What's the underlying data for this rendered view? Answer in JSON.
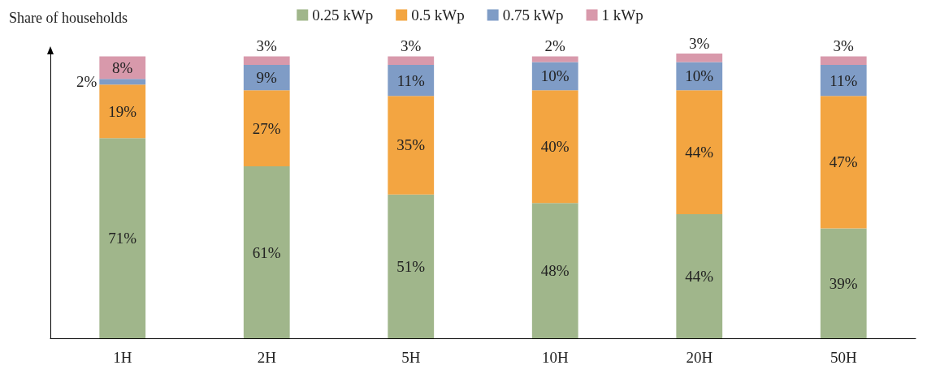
{
  "chart_data": {
    "type": "bar",
    "stacked": true,
    "ylabel": "Share of households",
    "categories": [
      "1H",
      "2H",
      "5H",
      "10H",
      "20H",
      "50H"
    ],
    "ylim": [
      0,
      101
    ],
    "grid": false,
    "legend": "top",
    "series": [
      {
        "name": "0.25 kWp",
        "color": "#a0b68b",
        "values": [
          71,
          61,
          51,
          48,
          44,
          39
        ],
        "value_labels": [
          "71%",
          "61%",
          "51%",
          "48%",
          "44%",
          "39%"
        ]
      },
      {
        "name": "0.5 kWp",
        "color": "#f3a541",
        "values": [
          19,
          27,
          35,
          40,
          44,
          47
        ],
        "value_labels": [
          "19%",
          "27%",
          "35%",
          "40%",
          "44%",
          "47%"
        ]
      },
      {
        "name": "0.75 kWp",
        "color": "#7f9cc6",
        "values": [
          2,
          9,
          11,
          10,
          10,
          11
        ],
        "value_labels": [
          "2%",
          "9%",
          "11%",
          "10%",
          "10%",
          "11%"
        ]
      },
      {
        "name": "1 kWp",
        "color": "#d899ab",
        "values": [
          8,
          3,
          3,
          2,
          3,
          3
        ],
        "value_labels": [
          "8%",
          "3%",
          "3%",
          "2%",
          "3%",
          "3%"
        ]
      }
    ]
  }
}
